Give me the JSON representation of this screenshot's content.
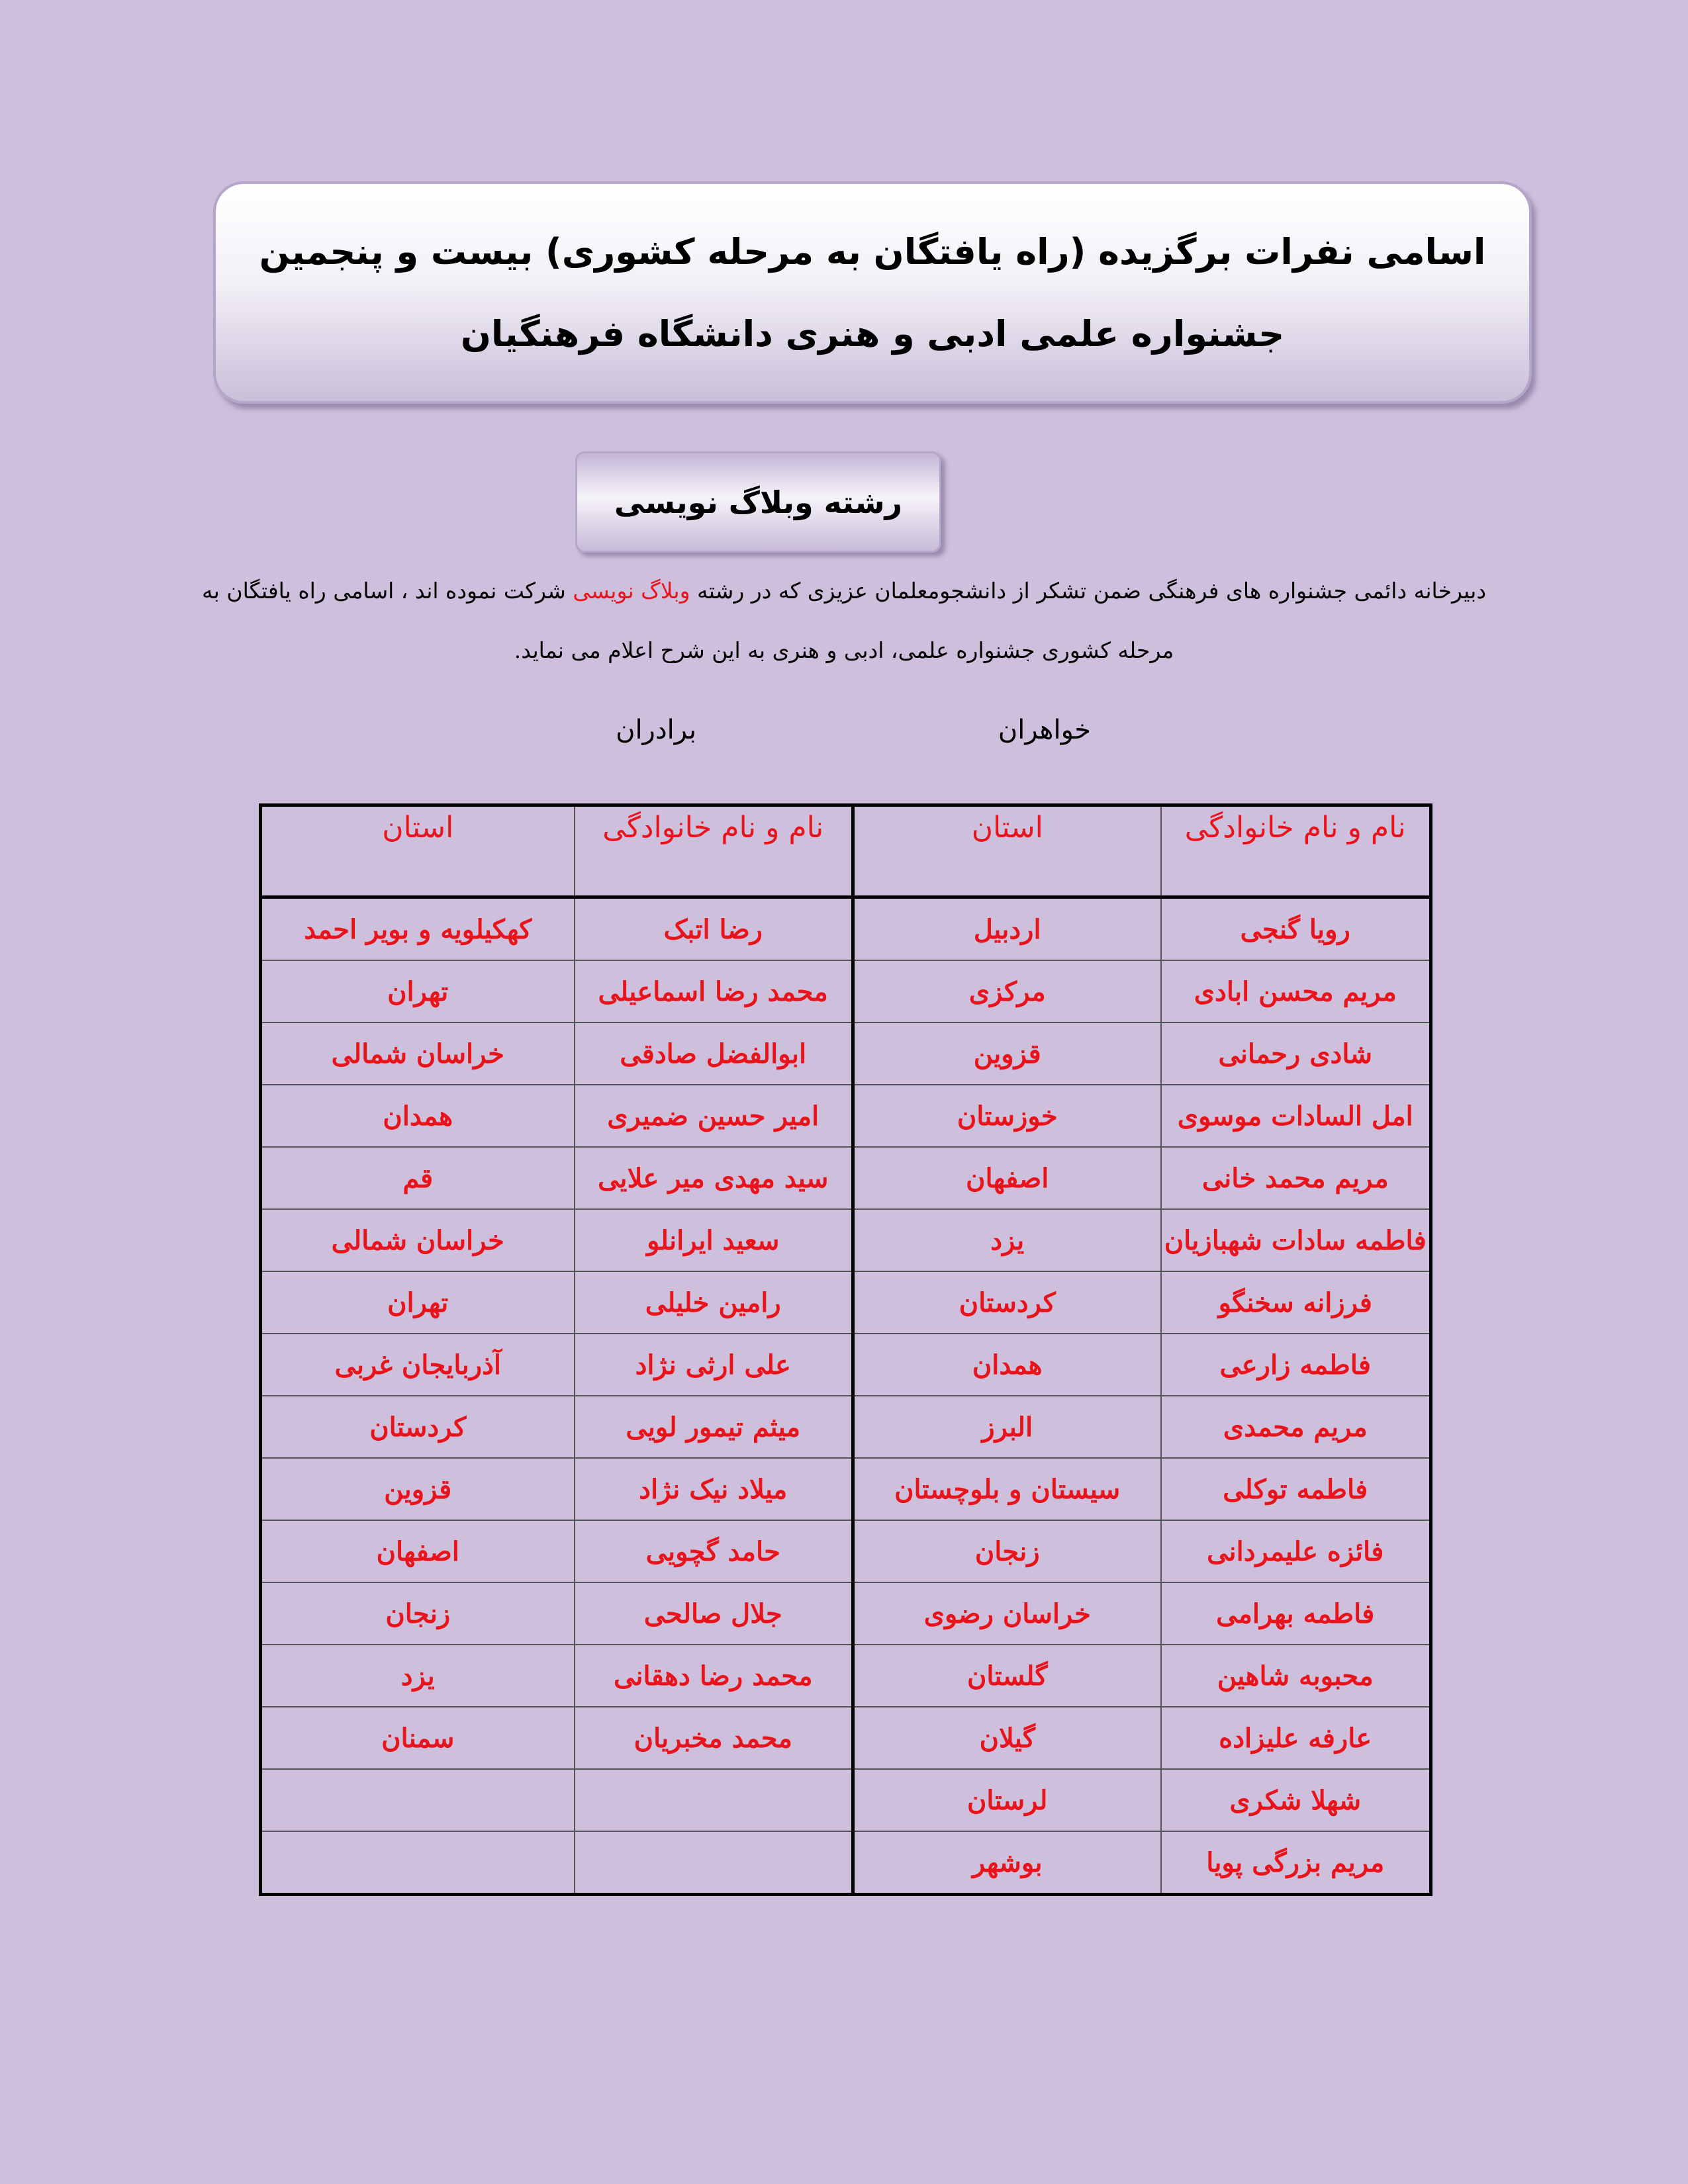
{
  "header": {
    "title_lines": [
      "اسامی نفرات برگزیده (راه یافتگان به  مرحله کشوری) بیست و پنجمین",
      "جشنواره علمی ادبی و هنری دانشگاه فرهنگیان"
    ],
    "section": "رشته وبلاگ نویسی"
  },
  "intro": {
    "before": "دبیرخانه دائمی جشنواره های فرهنگی ضمن تشکر از دانشجومعلمان عزیزی که در رشته",
    "highlight": "وبلاگ نویسی",
    "after": "شرکت نموده اند ، اسامی راه یافتگان به مرحله کشوری جشنواره علمی، ادبی و هنری به این شرح اعلام می نماید."
  },
  "groups": {
    "sisters": "خواهران",
    "brothers": "برادران"
  },
  "table": {
    "headers": [
      "نام و نام خانوادگی",
      "استان",
      "نام و نام خانوادگی",
      "استان"
    ],
    "rows": [
      [
        "رویا گنجی",
        "اردبیل",
        "رضا اتبک",
        "کهکیلویه و بویر احمد"
      ],
      [
        "مریم محسن ابادی",
        "مرکزی",
        "محمد رضا اسماعیلی",
        "تهران"
      ],
      [
        "شادی رحمانی",
        "قزوین",
        "ابوالفضل صادقی",
        "خراسان شمالی"
      ],
      [
        "امل السادات موسوی",
        "خوزستان",
        "امیر حسین ضمیری",
        "همدان"
      ],
      [
        "مریم محمد خانی",
        "اصفهان",
        "سید مهدی میر علایی",
        "قم"
      ],
      [
        "فاطمه سادات شهبازیان",
        "یزد",
        "سعید ایرانلو",
        "خراسان شمالی"
      ],
      [
        "فرزانه سخنگو",
        "کردستان",
        "رامین خلیلی",
        "تهران"
      ],
      [
        "فاطمه زارعی",
        "همدان",
        "علی ارثی نژاد",
        "آذربایجان غربی"
      ],
      [
        "مریم محمدی",
        "البرز",
        "میثم تیمور لویی",
        "کردستان"
      ],
      [
        "فاطمه توکلی",
        "سیستان و بلوچستان",
        "میلاد نیک نژاد",
        "قزوین"
      ],
      [
        "فائزه علیمردانی",
        "زنجان",
        "حامد گچویی",
        "اصفهان"
      ],
      [
        "فاطمه بهرامی",
        "خراسان رضوی",
        "جلال صالحی",
        "زنجان"
      ],
      [
        "محبوبه شاهین",
        "گلستان",
        "محمد رضا دهقانی",
        "یزد"
      ],
      [
        "عارفه علیزاده",
        "گیلان",
        "محمد مخبریان",
        "سمنان"
      ],
      [
        "شهلا شکری",
        "لرستان"
      ],
      [
        "مریم بزرگی پویا",
        "بوشهر"
      ]
    ]
  }
}
